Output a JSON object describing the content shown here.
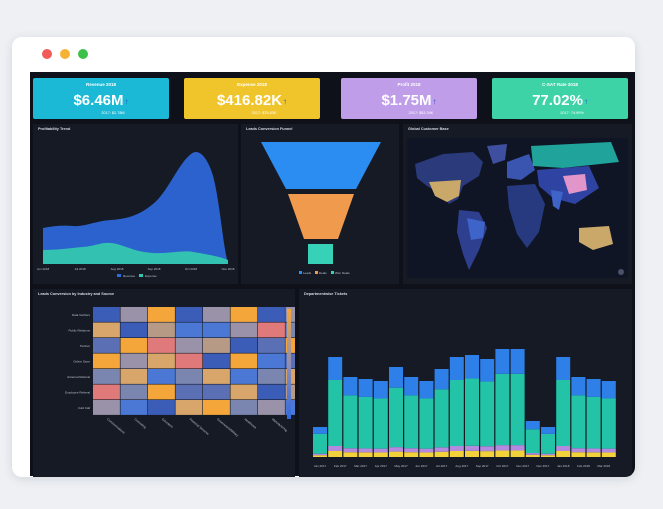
{
  "kpis": [
    {
      "title": "Revenue 2018",
      "value": "$6.46M",
      "sub": "2017: $2.78M",
      "color": "#1bb9d6"
    },
    {
      "title": "Expense 2018",
      "value": "$416.82K",
      "sub": "2017: $75.83K",
      "color": "#f0c52c"
    },
    {
      "title": "Profit 2018",
      "value": "$1.75M",
      "sub": "2017: $53.34K",
      "color": "#bf9de8"
    },
    {
      "title": "C-SAT Rate 2018",
      "value": "77.02%",
      "sub": "2017: 74.99%",
      "color": "#3ed3a7"
    }
  ],
  "panels": {
    "profitability": "Profitability Trend",
    "funnel": "Leads Conversion Funnel",
    "map": "Global Customer Base",
    "heatmap": "Leads Conversion by Industry and Source",
    "tickets": "Departmentwise Tickets"
  },
  "profitability": {
    "x_labels": [
      "Jun 2018",
      "Jul 2018",
      "Aug 2018",
      "Sep 2018",
      "Oct 2018",
      "Nov 2018"
    ],
    "legend": [
      "Revenue",
      "Expense"
    ],
    "colors": {
      "revenue": "#2f6ae0",
      "expense": "#34c7b0"
    },
    "revenue": [
      1.2,
      1.35,
      1.55,
      2.3,
      4.4,
      0.1
    ],
    "expense": [
      0.5,
      0.6,
      0.7,
      0.3,
      0.35,
      0.05
    ],
    "ymax": 5
  },
  "funnel": {
    "legend": [
      "Leads",
      "Deals",
      "Won Deals"
    ],
    "colors": [
      "#2b8df2",
      "#f09a4d",
      "#36d1b6"
    ]
  },
  "heatmap": {
    "rows": [
      "Data Verifiers",
      "Public Relations",
      "Partner",
      "Online Store",
      "External Referral",
      "Employee Referral",
      "Cold Call"
    ],
    "cols": [
      "Communications",
      "Consulting",
      "Education",
      "Financial Services",
      "Government/Military",
      "Healthcare",
      "Manufacturing",
      "Technology"
    ],
    "scale_colors": [
      "#f4a63a",
      "#8f8fb5",
      "#2f6ae0"
    ]
  },
  "tickets": {
    "x_labels": [
      "Jan 2017",
      "Feb 2017",
      "Mar 2017",
      "Apr 2017",
      "May 2017",
      "Jun 2017",
      "Jul 2017",
      "Aug 2017",
      "Sep 2017",
      "Oct 2017",
      "Nov 2017",
      "Dec 2017",
      "Jan 2018",
      "Feb 2018",
      "Mar 2018"
    ],
    "colors": [
      "#f2d13a",
      "#b38ae0",
      "#22c3a6",
      "#2e7fe8"
    ]
  },
  "icons": {
    "arrow": "arrow-up-icon"
  }
}
